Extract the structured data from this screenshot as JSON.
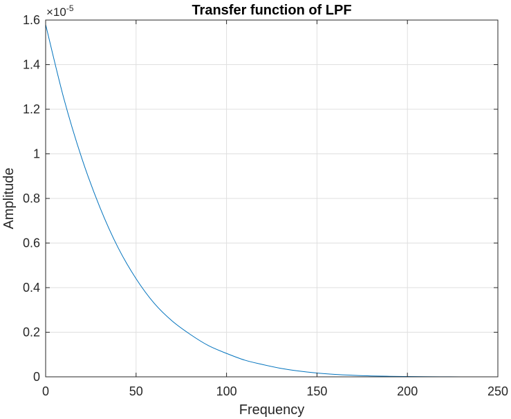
{
  "chart_data": {
    "type": "line",
    "title": "Transfer function of LPF",
    "xlabel": "Frequency",
    "ylabel": "Amplitude",
    "xlim": [
      0,
      250
    ],
    "ylim": [
      0,
      1.6
    ],
    "y_exponent_base": "×10",
    "y_exponent_power": "-5",
    "xticks": [
      "0",
      "50",
      "100",
      "150",
      "200",
      "250"
    ],
    "yticks": [
      "0",
      "0.2",
      "0.4",
      "0.6",
      "0.8",
      "1",
      "1.2",
      "1.4",
      "1.6"
    ],
    "grid": true,
    "series": [
      {
        "color": "#0072BD",
        "x": [
          0,
          10,
          20,
          30,
          40,
          50,
          60,
          70,
          80,
          90,
          100,
          110,
          120,
          130,
          140,
          150,
          160,
          170,
          180,
          190,
          200,
          210,
          220,
          230,
          240,
          250
        ],
        "y": [
          1.58,
          1.25,
          0.98,
          0.76,
          0.58,
          0.44,
          0.33,
          0.25,
          0.19,
          0.14,
          0.105,
          0.075,
          0.055,
          0.038,
          0.026,
          0.017,
          0.011,
          0.007,
          0.004,
          0.0025,
          0.0015,
          0.0008,
          0.0004,
          0.0002,
          0.0001,
          0.0
        ]
      }
    ]
  }
}
